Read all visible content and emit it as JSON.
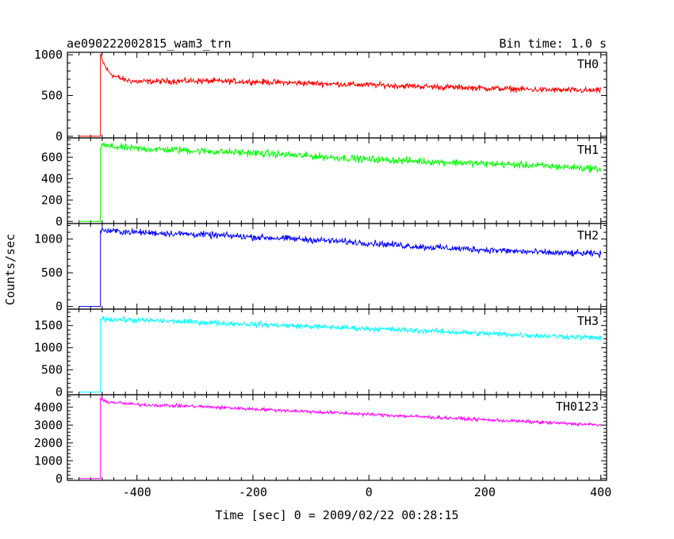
{
  "chart_data": {
    "type": "line",
    "title": "ae090222002815_wam3_trn",
    "subtitle": "Bin time: 1.0 s",
    "xlabel": "Time [sec] 0 = 2009/02/22 00:28:15",
    "ylabel": "Counts/sec",
    "xlim": [
      -520,
      410
    ],
    "x_ticks": [
      -400,
      -200,
      0,
      200,
      400
    ],
    "trigger_time": -463,
    "panels": [
      {
        "name": "TH0",
        "color": "#ff0000",
        "ylim": [
          -20,
          1030
        ],
        "y_ticks": [
          0,
          500,
          1000
        ],
        "pre_level": 0,
        "x": [
          -463,
          -460,
          -455,
          -450,
          -440,
          -420,
          -400,
          -300,
          -200,
          -100,
          0,
          100,
          200,
          300,
          400
        ],
        "y": [
          1000,
          930,
          860,
          800,
          740,
          690,
          670,
          680,
          670,
          650,
          630,
          610,
          590,
          570,
          560
        ],
        "noise": 30
      },
      {
        "name": "TH1",
        "color": "#00ff00",
        "ylim": [
          -20,
          780
        ],
        "y_ticks": [
          0,
          200,
          400,
          600
        ],
        "pre_level": 0,
        "x": [
          -463,
          -460,
          -450,
          -400,
          -300,
          -200,
          -100,
          0,
          100,
          200,
          300,
          400
        ],
        "y": [
          700,
          720,
          700,
          680,
          660,
          640,
          610,
          580,
          560,
          540,
          520,
          490
        ],
        "noise": 28
      },
      {
        "name": "TH2",
        "color": "#0000ff",
        "ylim": [
          -40,
          1230
        ],
        "y_ticks": [
          0,
          500,
          1000
        ],
        "pre_level": 0,
        "x": [
          -463,
          -460,
          -450,
          -400,
          -300,
          -200,
          -100,
          0,
          100,
          200,
          300,
          400
        ],
        "y": [
          1120,
          1130,
          1120,
          1100,
          1070,
          1030,
          990,
          940,
          880,
          840,
          800,
          780
        ],
        "noise": 40
      },
      {
        "name": "TH3",
        "color": "#00ffff",
        "ylim": [
          -60,
          1870
        ],
        "y_ticks": [
          0,
          500,
          1000,
          1500
        ],
        "pre_level": 0,
        "x": [
          -463,
          -460,
          -450,
          -400,
          -300,
          -200,
          -100,
          0,
          100,
          200,
          300,
          400
        ],
        "y": [
          1640,
          1650,
          1640,
          1620,
          1580,
          1530,
          1480,
          1430,
          1380,
          1320,
          1270,
          1220
        ],
        "noise": 50
      },
      {
        "name": "TH0123",
        "color": "#ff00ff",
        "ylim": [
          -100,
          4700
        ],
        "y_ticks": [
          0,
          1000,
          2000,
          3000,
          4000
        ],
        "pre_level": 0,
        "x": [
          -463,
          -460,
          -450,
          -400,
          -300,
          -200,
          -100,
          0,
          100,
          200,
          300,
          400
        ],
        "y": [
          4500,
          4400,
          4300,
          4150,
          4050,
          3900,
          3750,
          3600,
          3450,
          3300,
          3150,
          3000
        ],
        "noise": 80
      }
    ]
  }
}
